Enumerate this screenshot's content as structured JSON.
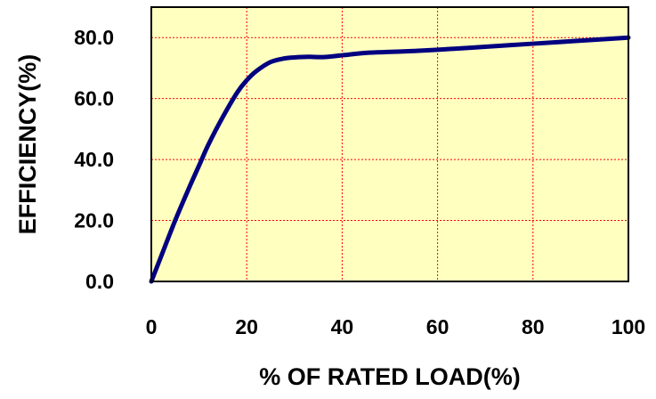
{
  "chart_data": {
    "type": "line",
    "xlabel": "% OF RATED LOAD(%)",
    "ylabel": "EFFICIENCY(%)",
    "xlim": [
      0,
      100
    ],
    "ylim": [
      0,
      90
    ],
    "x_ticks": [
      "0",
      "20",
      "40",
      "60",
      "80",
      "100"
    ],
    "y_ticks": [
      "0.0",
      "20.0",
      "40.0",
      "60.0",
      "80.0"
    ],
    "x_tick_values": [
      0,
      20,
      40,
      60,
      80,
      100
    ],
    "y_tick_values": [
      0,
      20,
      40,
      60,
      80
    ],
    "grid": true,
    "legend": "none",
    "colors": {
      "plot_background": "#ffffc0",
      "grid": "#ff0000",
      "line": "#000080",
      "frame": "#000000"
    },
    "series": [
      {
        "x": [
          0,
          2,
          5,
          8,
          10,
          12,
          15,
          18,
          20,
          22,
          25,
          28,
          30,
          33,
          36,
          40,
          45,
          50,
          55,
          60,
          70,
          80,
          90,
          100
        ],
        "y": [
          0,
          8,
          20,
          31,
          38,
          45,
          54,
          62,
          66,
          69,
          72,
          73.2,
          73.5,
          73.7,
          73.6,
          74.2,
          75,
          75.3,
          75.6,
          76,
          77,
          78,
          79,
          80
        ]
      }
    ]
  }
}
